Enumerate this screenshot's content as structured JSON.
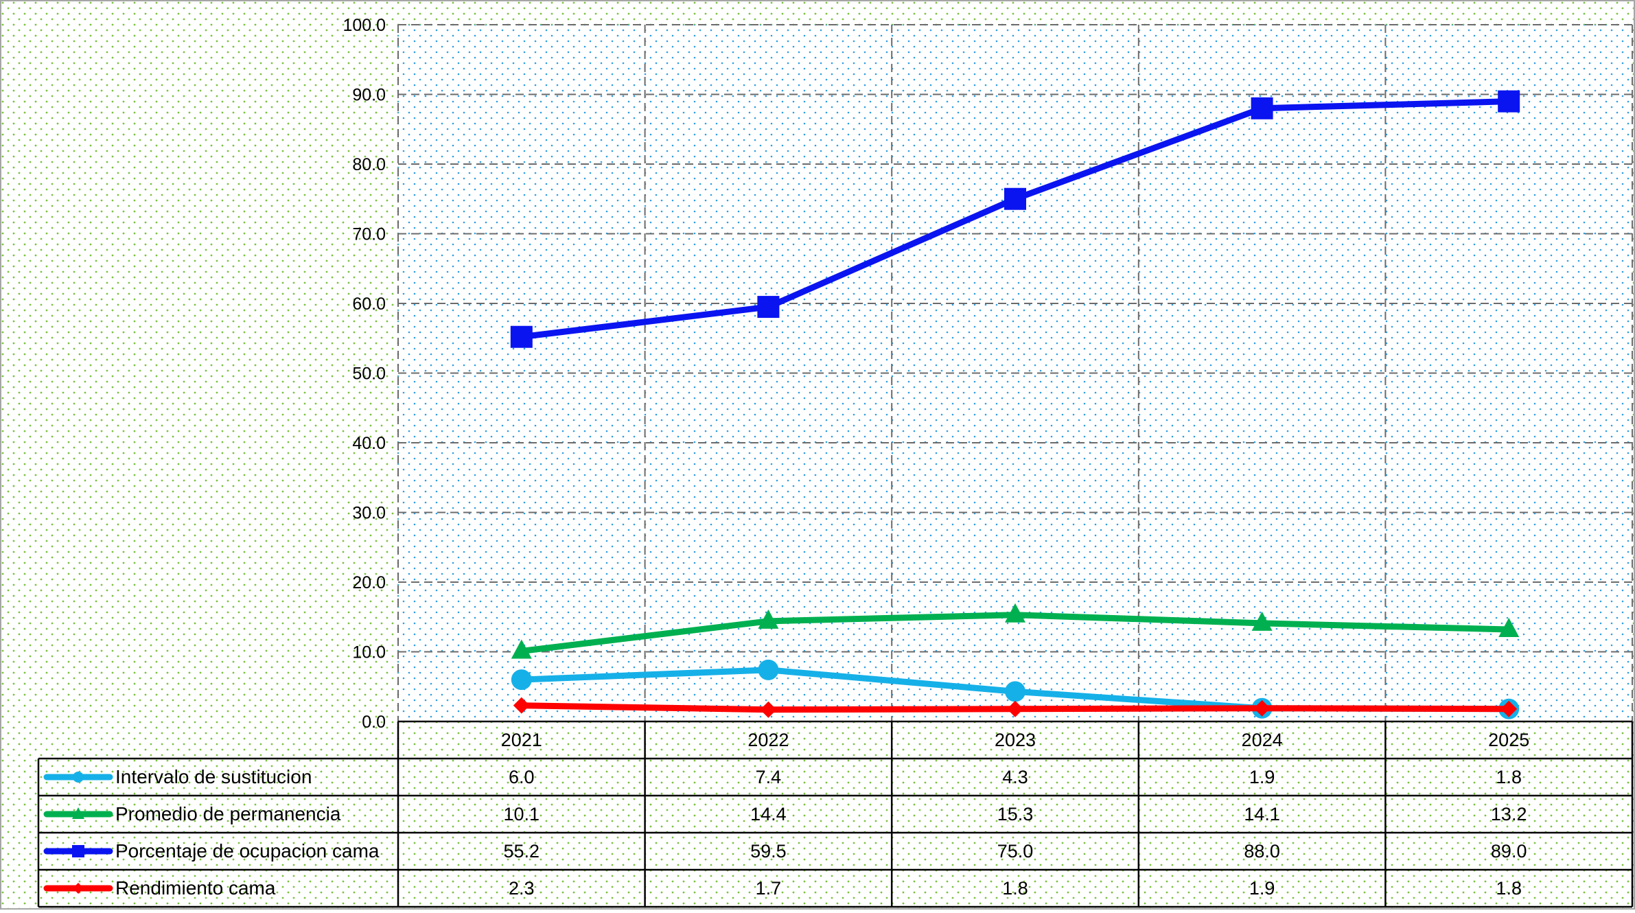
{
  "chart_data": {
    "type": "line",
    "title": "",
    "xlabel": "",
    "ylabel": "",
    "categories": [
      "2021",
      "2022",
      "2023",
      "2024",
      "2025"
    ],
    "y_ticks": [
      "0.0",
      "10.0",
      "20.0",
      "30.0",
      "40.0",
      "50.0",
      "60.0",
      "70.0",
      "80.0",
      "90.0",
      "100.0"
    ],
    "ylim": [
      0,
      100
    ],
    "grid": true,
    "legend": "data-table-bottom",
    "series": [
      {
        "name": "Intervalo de sustitucion",
        "marker": "circle",
        "color": "#16B0E8",
        "values": [
          6.0,
          7.4,
          4.3,
          1.9,
          1.8
        ],
        "labels": [
          "6.0",
          "7.4",
          "4.3",
          "1.9",
          "1.8"
        ]
      },
      {
        "name": "Promedio de permanencia",
        "marker": "triangle",
        "color": "#00B050",
        "values": [
          10.1,
          14.4,
          15.3,
          14.1,
          13.2
        ],
        "labels": [
          "10.1",
          "14.4",
          "15.3",
          "14.1",
          "13.2"
        ]
      },
      {
        "name": "Porcentaje de ocupacion cama",
        "marker": "square",
        "color": "#0A14F0",
        "values": [
          55.2,
          59.5,
          75.0,
          88.0,
          89.0
        ],
        "labels": [
          "55.2",
          "59.5",
          "75.0",
          "88.0",
          "89.0"
        ]
      },
      {
        "name": "Rendimiento cama",
        "marker": "diamond",
        "color": "#FF0000",
        "values": [
          2.3,
          1.7,
          1.8,
          1.9,
          1.8
        ],
        "labels": [
          "2.3",
          "1.7",
          "1.8",
          "1.9",
          "1.8"
        ]
      }
    ],
    "colors": {
      "outer_dots": "#7DC242",
      "plot_dots": "#2E9FE0",
      "grid": "#6b6b6b",
      "table_border": "#000000"
    }
  }
}
